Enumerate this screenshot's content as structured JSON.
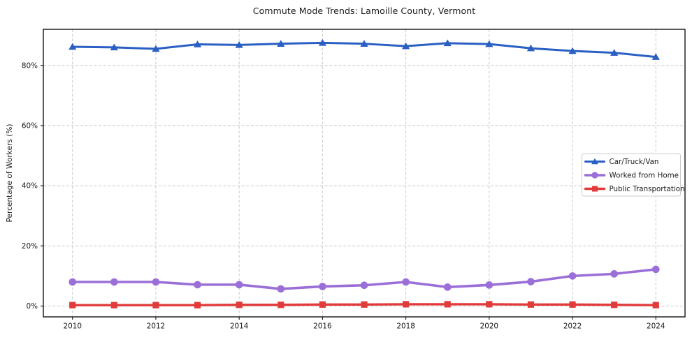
{
  "chart_data": {
    "type": "line",
    "title": "Commute Mode Trends: Lamoille County, Vermont",
    "xlabel": "",
    "ylabel": "Percentage of Workers (%)",
    "x": [
      2010,
      2011,
      2012,
      2013,
      2014,
      2015,
      2016,
      2017,
      2018,
      2019,
      2020,
      2021,
      2022,
      2023,
      2024
    ],
    "series": [
      {
        "name": "Car/Truck/Van",
        "color": "#2a5fc4",
        "marker": "triangle",
        "line_width": 3,
        "values": [
          86.2,
          86.0,
          85.5,
          87.0,
          86.8,
          87.2,
          87.5,
          87.2,
          86.4,
          87.4,
          87.1,
          85.7,
          84.8,
          84.2,
          82.8
        ]
      },
      {
        "name": "Worked from Home",
        "color": "#9b6fd8",
        "marker": "circle",
        "line_width": 3.6,
        "values": [
          8.0,
          8.0,
          8.0,
          7.1,
          7.1,
          5.7,
          6.5,
          6.9,
          8.0,
          6.3,
          7.0,
          8.1,
          10.0,
          10.7,
          12.2
        ]
      },
      {
        "name": "Public Transportation",
        "color": "#e23b3b",
        "marker": "square",
        "line_width": 3.4,
        "values": [
          0.3,
          0.3,
          0.3,
          0.3,
          0.4,
          0.4,
          0.5,
          0.5,
          0.6,
          0.6,
          0.6,
          0.5,
          0.5,
          0.4,
          0.3
        ]
      }
    ],
    "xticks": [
      2010,
      2012,
      2014,
      2016,
      2018,
      2020,
      2022,
      2024
    ],
    "xtick_labels": [
      "2010",
      "2012",
      "2014",
      "2016",
      "2018",
      "2020",
      "2022",
      "2024"
    ],
    "yticks": [
      0,
      20,
      40,
      60,
      80
    ],
    "ytick_labels": [
      "0%",
      "20%",
      "40%",
      "60%",
      "80%"
    ],
    "xlim": [
      2009.3,
      2024.7
    ],
    "ylim": [
      -3.6,
      92.0
    ],
    "grid": true,
    "grid_style": "dashed",
    "grid_color": "#cbcbcb",
    "spine_color": "#141414",
    "background_color": "#ffffff",
    "legend_position": "center right"
  }
}
